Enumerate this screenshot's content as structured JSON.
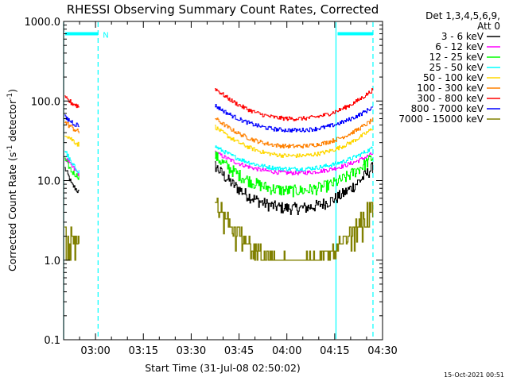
{
  "chart_data": {
    "type": "line",
    "title": "RHESSI Observing Summary Count Rates, Corrected",
    "xlabel": "Start Time (31-Jul-08 02:50:02)",
    "ylabel": "Corrected Count Rate (s⁻¹ detector⁻¹)",
    "ylabel_parts": [
      "Corrected Count Rate (s",
      "-1",
      " detector",
      "-1",
      ")"
    ],
    "yscale": "log",
    "ylim": [
      0.1,
      1000
    ],
    "y_ticks": [
      0.1,
      1,
      10,
      100,
      1000
    ],
    "y_tick_labels": [
      "0.1",
      "1.0",
      "10.0",
      "100.0",
      "1000.0"
    ],
    "xlim": [
      "02:50:02",
      "04:30:00"
    ],
    "x_tick_labels": [
      "03:00",
      "03:15",
      "03:30",
      "03:45",
      "04:00",
      "04:15",
      "04:30"
    ],
    "x_ticks_min": [
      10,
      25,
      40,
      55,
      70,
      85,
      100
    ],
    "legend_header": [
      "Det 1,3,4,5,6,9,",
      "Att 0"
    ],
    "legend_position": "outside-right-top",
    "timestamp": "15-Oct-2021 00:51",
    "flag_label": "N",
    "annotations": {
      "vertical_lines_min": [
        {
          "t": 0.0,
          "style": "solid",
          "color": "#00ffff"
        },
        {
          "t": 10.8,
          "style": "dashed",
          "color": "#00ffff"
        },
        {
          "t": 85.4,
          "style": "solid",
          "color": "#00ffff"
        },
        {
          "t": 97.0,
          "style": "dashed",
          "color": "#00ffff"
        }
      ],
      "night_bars_min": [
        [
          0.0,
          10.8
        ],
        [
          85.4,
          97.0
        ]
      ],
      "night_bar_level": 700
    },
    "segments_min": [
      [
        0.0,
        4.8
      ],
      [
        47.2,
        97.0
      ]
    ],
    "series": [
      {
        "name": "3 - 6 keV",
        "color": "#000000",
        "start": [
          15,
          9,
          7
        ],
        "mid": 4.5,
        "end": 15
      },
      {
        "name": "6 - 12 keV",
        "color": "#ff00ff",
        "start": [
          20,
          15,
          12
        ],
        "mid": 12.5,
        "end": 22
      },
      {
        "name": "12 - 25 keV",
        "color": "#00ff00",
        "start": [
          19,
          13,
          11
        ],
        "mid": 7.5,
        "end": 20
      },
      {
        "name": "25 - 50 keV",
        "color": "#00ffff",
        "start": [
          25,
          16,
          13
        ],
        "mid": 14,
        "end": 26
      },
      {
        "name": "50 - 100 keV",
        "color": "#ffd700",
        "start": [
          40,
          33,
          28
        ],
        "mid": 20.5,
        "end": 46
      },
      {
        "name": "100 - 300 keV",
        "color": "#ff8000",
        "start": [
          55,
          47,
          40
        ],
        "mid": 27,
        "end": 59
      },
      {
        "name": "300 - 800 keV",
        "color": "#ff0000",
        "start": [
          110,
          95,
          85
        ],
        "mid": 60,
        "end": 140
      },
      {
        "name": "800 - 7000 keV",
        "color": "#0000ff",
        "start": [
          63,
          55,
          48
        ],
        "mid": 43,
        "end": 85
      },
      {
        "name": "7000 - 15000 keV",
        "color": "#808000",
        "start": [
          2.0,
          2.0,
          1.6
        ],
        "mid": 1.0,
        "end": 5.5
      }
    ]
  }
}
